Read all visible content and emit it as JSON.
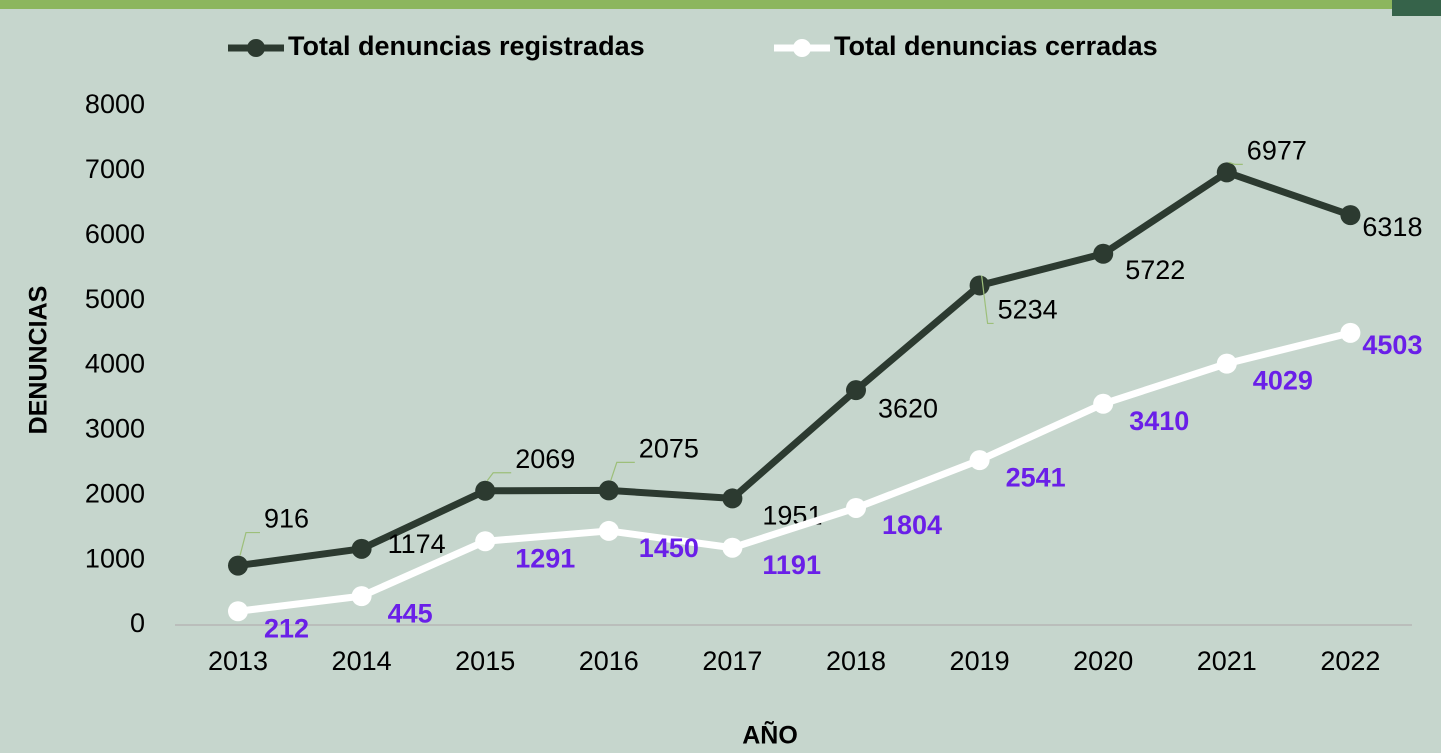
{
  "chart_data": {
    "type": "line",
    "x_label": "AÑO",
    "y_label": "DENUNCIAS",
    "categories": [
      "2013",
      "2014",
      "2015",
      "2016",
      "2017",
      "2018",
      "2019",
      "2020",
      "2021",
      "2022"
    ],
    "series": [
      {
        "name": "Total denuncias registradas",
        "color": "#2c3a30",
        "values": [
          916,
          1174,
          2069,
          2075,
          1951,
          3620,
          5234,
          5722,
          6977,
          6318
        ]
      },
      {
        "name": "Total denuncias cerradas",
        "color": "#ffffff",
        "values": [
          212,
          445,
          1291,
          1450,
          1191,
          1804,
          2541,
          3410,
          4029,
          4503
        ]
      }
    ],
    "ylim": [
      0,
      8000
    ],
    "yticks": [
      0,
      1000,
      2000,
      3000,
      4000,
      5000,
      6000,
      7000,
      8000
    ],
    "grid": false,
    "legend": "top"
  }
}
